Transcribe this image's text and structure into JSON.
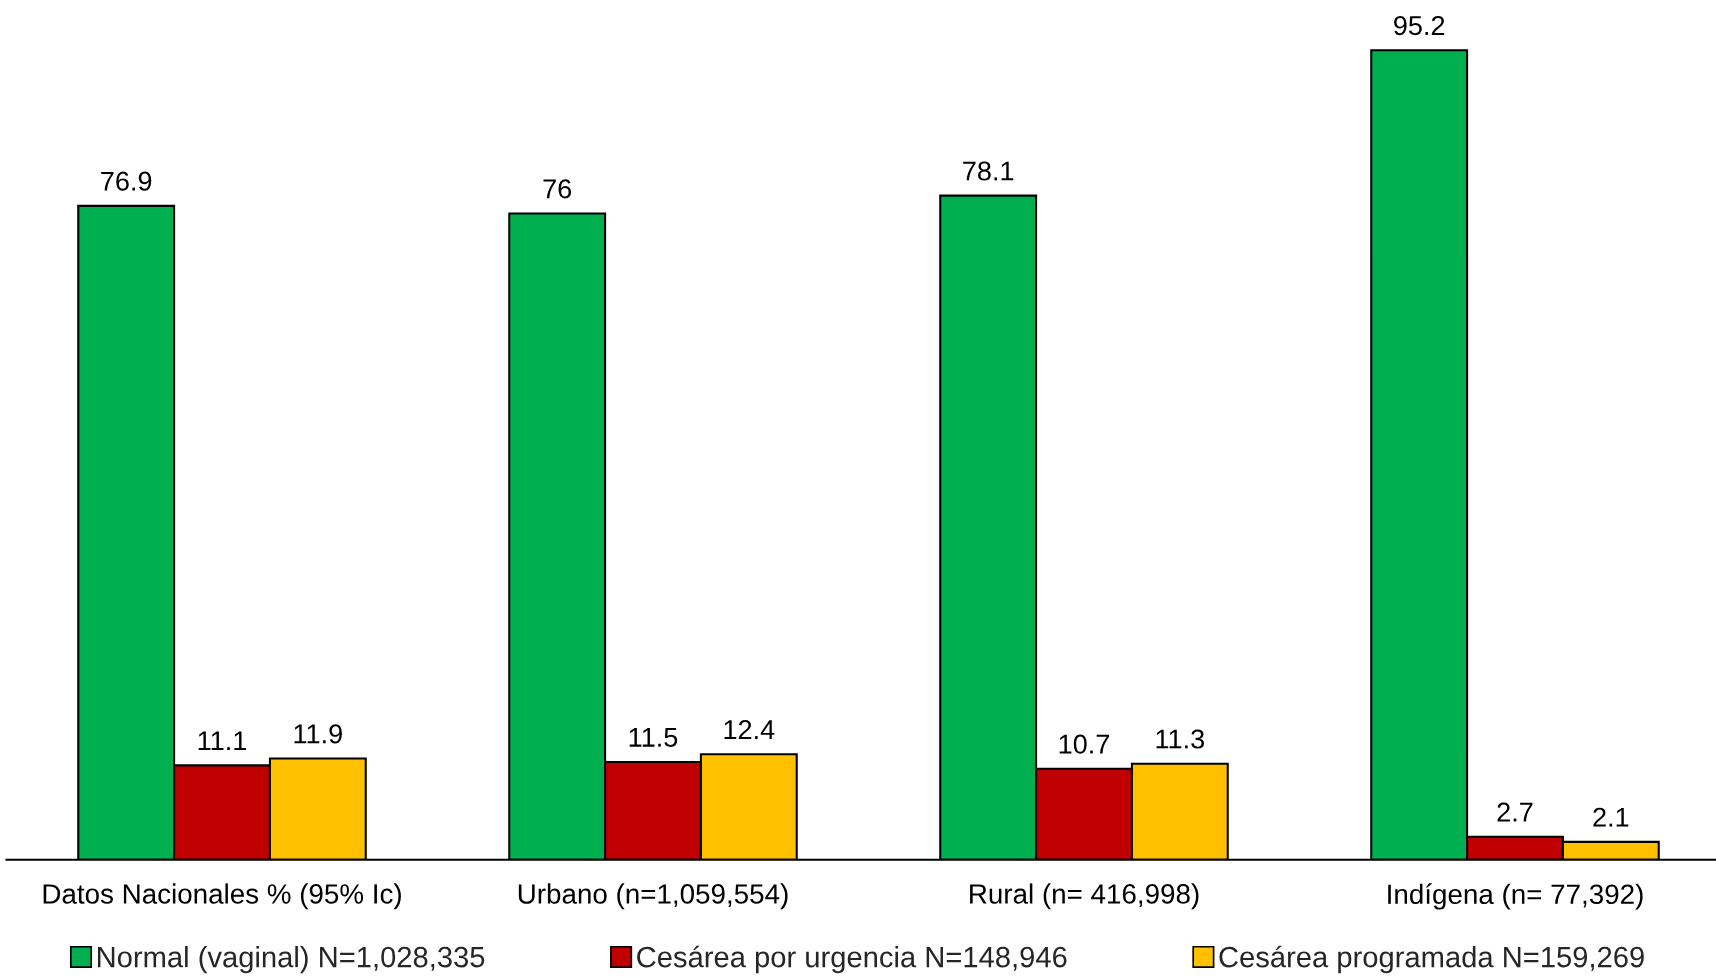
{
  "chart_data": {
    "type": "bar",
    "categories": [
      "Datos Nacionales % (95% Ic)",
      "Urbano (n=1,059,554)",
      "Rural (n= 416,998)",
      "Indígena (n= 77,392)"
    ],
    "series": [
      {
        "name": "Normal (vaginal) N=1,028,335",
        "color": "#00b050",
        "values": [
          76.9,
          76,
          78.1,
          95.2
        ]
      },
      {
        "name": "Cesárea por urgencia N=148,946",
        "color": "#c00000",
        "values": [
          11.1,
          11.5,
          10.7,
          2.7
        ]
      },
      {
        "name": "Cesárea programada N=159,269",
        "color": "#ffc000",
        "values": [
          11.9,
          12.4,
          11.3,
          2.1
        ]
      }
    ],
    "data_labels": true,
    "legend": "bottom",
    "tick_labels": "x"
  }
}
